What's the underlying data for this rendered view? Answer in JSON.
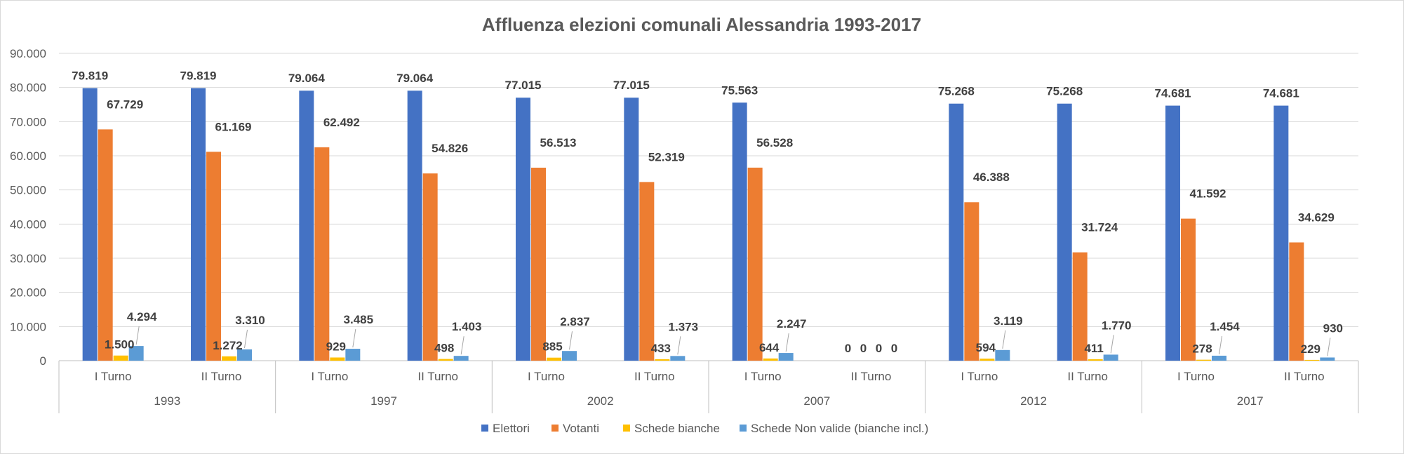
{
  "chart_data": {
    "type": "bar",
    "title": "Affluenza elezioni comunali Alessandria 1993-2017",
    "xlabel": "",
    "ylabel": "",
    "ylim": [
      0,
      90000
    ],
    "yticks": [
      "0",
      "10.000",
      "20.000",
      "30.000",
      "40.000",
      "50.000",
      "60.000",
      "70.000",
      "80.000",
      "90.000"
    ],
    "grid": true,
    "legend_position": "bottom",
    "groups": [
      {
        "year": "1993",
        "categories": [
          "I Turno",
          "II Turno"
        ]
      },
      {
        "year": "1997",
        "categories": [
          "I Turno",
          "II Turno"
        ]
      },
      {
        "year": "2002",
        "categories": [
          "I Turno",
          "II Turno"
        ]
      },
      {
        "year": "2007",
        "categories": [
          "I Turno",
          "II Turno"
        ]
      },
      {
        "year": "2012",
        "categories": [
          "I Turno",
          "II Turno"
        ]
      },
      {
        "year": "2017",
        "categories": [
          "I Turno",
          "II Turno"
        ]
      }
    ],
    "series": [
      {
        "name": "Elettori",
        "color": "#4472c4",
        "values": [
          79819,
          79819,
          79064,
          79064,
          77015,
          77015,
          75563,
          0,
          75268,
          75268,
          74681,
          74681
        ],
        "labels": [
          "79.819",
          "79.819",
          "79.064",
          "79.064",
          "77.015",
          "77.015",
          "75.563",
          "0",
          "75.268",
          "75.268",
          "74.681",
          "74.681"
        ]
      },
      {
        "name": "Votanti",
        "color": "#ed7d31",
        "values": [
          67729,
          61169,
          62492,
          54826,
          56513,
          52319,
          56528,
          0,
          46388,
          31724,
          41592,
          34629
        ],
        "labels": [
          "67.729",
          "61.169",
          "62.492",
          "54.826",
          "56.513",
          "52.319",
          "56.528",
          "0",
          "46.388",
          "31.724",
          "41.592",
          "34.629"
        ]
      },
      {
        "name": "Schede bianche",
        "color": "#ffc000",
        "values": [
          1500,
          1272,
          929,
          498,
          885,
          433,
          644,
          0,
          594,
          411,
          278,
          229
        ],
        "labels": [
          "1.500",
          "1.272",
          "929",
          "498",
          "885",
          "433",
          "644",
          "0",
          "594",
          "411",
          "278",
          "229"
        ]
      },
      {
        "name": "Schede Non valide (bianche incl.)",
        "color": "#5b9bd5",
        "values": [
          4294,
          3310,
          3485,
          1403,
          2837,
          1373,
          2247,
          0,
          3119,
          1770,
          1454,
          930
        ],
        "labels": [
          "4.294",
          "3.310",
          "3.485",
          "1.403",
          "2.837",
          "1.373",
          "2.247",
          "0",
          "3.119",
          "1.770",
          "1.454",
          "930"
        ]
      }
    ]
  }
}
